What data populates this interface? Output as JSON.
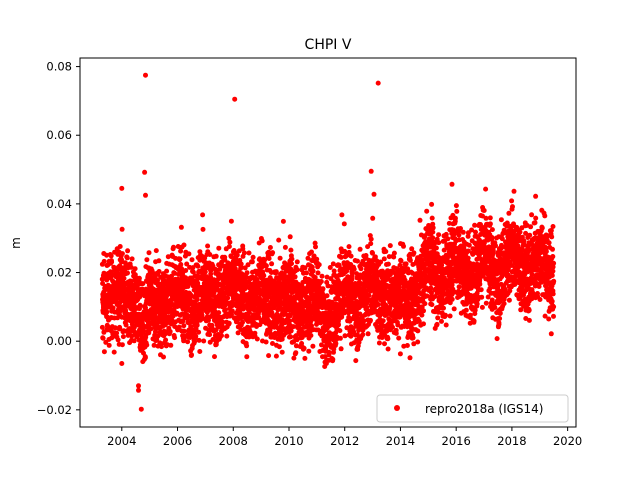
{
  "chart_data": {
    "type": "scatter",
    "title": "CHPI V",
    "xlabel": "",
    "ylabel": "m",
    "xlim": [
      2002.5,
      2020.3
    ],
    "ylim": [
      -0.025,
      0.0825
    ],
    "xticks": [
      2004,
      2006,
      2008,
      2010,
      2012,
      2014,
      2016,
      2018,
      2020
    ],
    "xtick_labels": [
      "2004",
      "2006",
      "2008",
      "2010",
      "2012",
      "2014",
      "2016",
      "2018",
      "2020"
    ],
    "yticks": [
      -0.02,
      0.0,
      0.02,
      0.04,
      0.06,
      0.08
    ],
    "ytick_labels": [
      "−0.02",
      "0.00",
      "0.02",
      "0.04",
      "0.06",
      "0.08"
    ],
    "grid": false,
    "legend_position": "bottom-right",
    "series": [
      {
        "name": "repro2018a (IGS14)",
        "color": "#ff0000",
        "marker": "circle",
        "x_start": 2003.3,
        "x_end": 2019.5,
        "trend_points": [
          {
            "x": 2003.3,
            "y": 0.011
          },
          {
            "x": 2004.0,
            "y": 0.016
          },
          {
            "x": 2004.3,
            "y": 0.011
          },
          {
            "x": 2004.8,
            "y": 0.004
          },
          {
            "x": 2005.0,
            "y": 0.014
          },
          {
            "x": 2005.5,
            "y": 0.009
          },
          {
            "x": 2006.0,
            "y": 0.016
          },
          {
            "x": 2006.5,
            "y": 0.01
          },
          {
            "x": 2007.0,
            "y": 0.015
          },
          {
            "x": 2007.5,
            "y": 0.011
          },
          {
            "x": 2008.0,
            "y": 0.018
          },
          {
            "x": 2008.5,
            "y": 0.01
          },
          {
            "x": 2009.0,
            "y": 0.016
          },
          {
            "x": 2009.5,
            "y": 0.009
          },
          {
            "x": 2010.0,
            "y": 0.014
          },
          {
            "x": 2010.5,
            "y": 0.008
          },
          {
            "x": 2011.0,
            "y": 0.016
          },
          {
            "x": 2011.3,
            "y": 0.004
          },
          {
            "x": 2012.0,
            "y": 0.016
          },
          {
            "x": 2012.5,
            "y": 0.01
          },
          {
            "x": 2013.0,
            "y": 0.018
          },
          {
            "x": 2013.3,
            "y": 0.011
          },
          {
            "x": 2014.0,
            "y": 0.015
          },
          {
            "x": 2014.5,
            "y": 0.01
          },
          {
            "x": 2015.0,
            "y": 0.025
          },
          {
            "x": 2015.5,
            "y": 0.016
          },
          {
            "x": 2016.0,
            "y": 0.026
          },
          {
            "x": 2016.5,
            "y": 0.017
          },
          {
            "x": 2017.0,
            "y": 0.027
          },
          {
            "x": 2017.5,
            "y": 0.017
          },
          {
            "x": 2018.0,
            "y": 0.027
          },
          {
            "x": 2018.5,
            "y": 0.019
          },
          {
            "x": 2019.0,
            "y": 0.026
          },
          {
            "x": 2019.5,
            "y": 0.017
          }
        ],
        "scatter_spread": 0.006,
        "outliers": [
          {
            "x": 2004.85,
            "y": 0.0775
          },
          {
            "x": 2008.05,
            "y": 0.0705
          },
          {
            "x": 2013.2,
            "y": 0.0752
          },
          {
            "x": 2004.82,
            "y": 0.0492
          },
          {
            "x": 2012.95,
            "y": 0.0495
          },
          {
            "x": 2004.0,
            "y": 0.0445
          },
          {
            "x": 2015.85,
            "y": 0.0457
          },
          {
            "x": 2004.7,
            "y": -0.0198
          },
          {
            "x": 2004.6,
            "y": -0.0143
          },
          {
            "x": 2004.6,
            "y": -0.013
          },
          {
            "x": 2004.0,
            "y": -0.0065
          },
          {
            "x": 2011.35,
            "y": -0.0055
          },
          {
            "x": 2004.85,
            "y": 0.0425
          },
          {
            "x": 2013.05,
            "y": 0.0428
          },
          {
            "x": 2018.85,
            "y": 0.0422
          },
          {
            "x": 2006.9,
            "y": 0.0368
          },
          {
            "x": 2011.9,
            "y": 0.0368
          },
          {
            "x": 2009.8,
            "y": 0.0349
          },
          {
            "x": 2014.0,
            "y": -0.0037
          }
        ]
      }
    ]
  }
}
